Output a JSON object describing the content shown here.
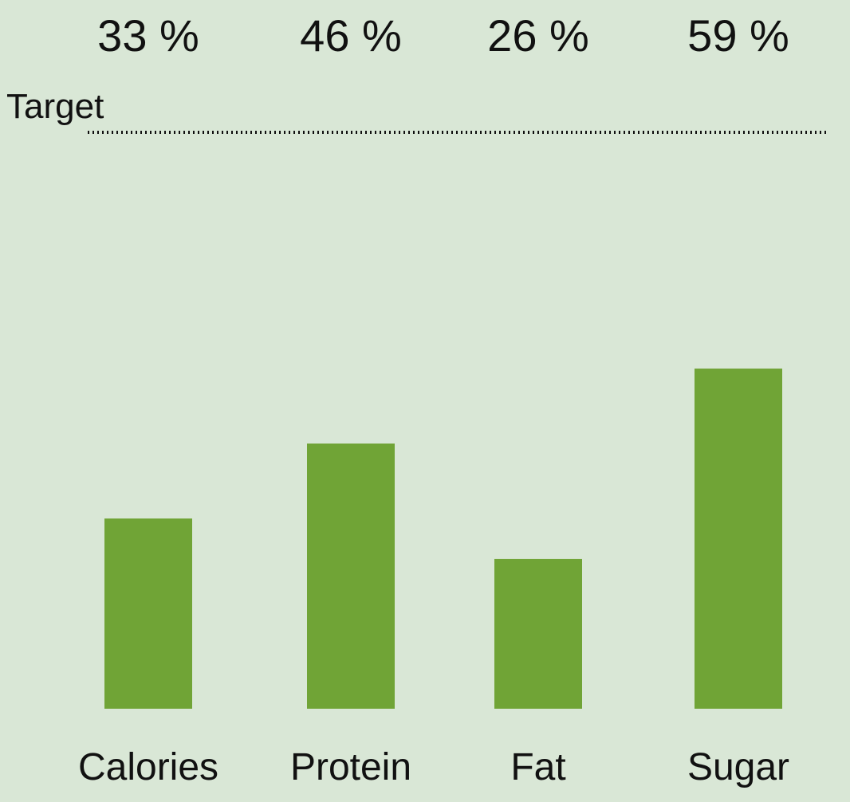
{
  "chart_data": {
    "type": "bar",
    "categories": [
      "Calories",
      "Protein",
      "Fat",
      "Sugar"
    ],
    "values": [
      33,
      46,
      26,
      59
    ],
    "data_labels": [
      "33 %",
      "46 %",
      "26 %",
      "59 %"
    ],
    "target_label": "Target",
    "target_value": 100,
    "ylim": [
      0,
      100
    ],
    "grid": false,
    "legend": "none",
    "colors": {
      "background": "#d9e7d6",
      "bar": "#70a436",
      "text": "#111111",
      "target_line": "#111111"
    }
  }
}
